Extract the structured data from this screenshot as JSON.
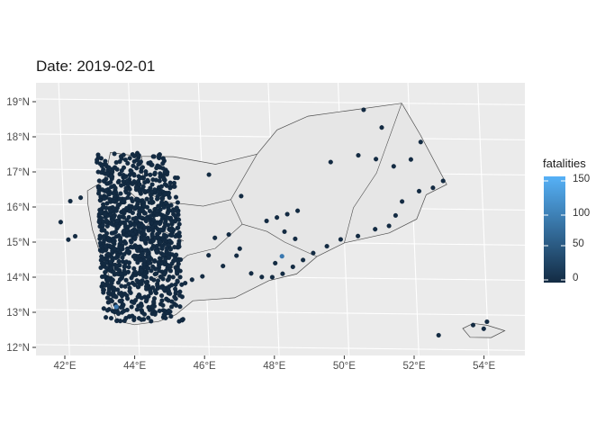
{
  "title": "Date: 2019-02-01",
  "legend": {
    "title": "fatalities",
    "breaks": [
      "150",
      "100",
      "50",
      "0"
    ],
    "color_low": "#132B43",
    "color_high": "#56B1F7"
  },
  "axes": {
    "x_ticks": [
      "42°E",
      "44°E",
      "46°E",
      "48°E",
      "50°E",
      "52°E",
      "54°E"
    ],
    "y_ticks": [
      "19°N",
      "18°N",
      "17°N",
      "16°N",
      "15°N",
      "14°N",
      "13°N",
      "12°N"
    ]
  },
  "colors": {
    "panel": "#ebebeb",
    "grid": "#ffffff",
    "land": "#e6e6e6",
    "border": "#4d4d4d",
    "point": "#132B43"
  },
  "chart_data": {
    "type": "scatter",
    "x_range_lon": [
      41.4,
      55.2
    ],
    "y_range_lat": [
      11.9,
      19.5
    ],
    "x_tick_values": [
      42,
      44,
      46,
      48,
      50,
      52,
      54
    ],
    "y_tick_values": [
      19,
      18,
      17,
      16,
      15,
      14,
      13,
      12
    ],
    "color_scale": "fatalities, continuous 0–150",
    "points": [
      [
        50.7,
        18.8
      ],
      [
        51.2,
        18.3
      ],
      [
        52.3,
        17.9
      ],
      [
        52.0,
        17.4
      ],
      [
        51.0,
        17.4
      ],
      [
        49.7,
        17.3
      ],
      [
        50.5,
        17.5
      ],
      [
        51.5,
        17.2
      ],
      [
        52.9,
        16.8
      ],
      [
        52.6,
        16.6
      ],
      [
        52.2,
        16.5
      ],
      [
        51.7,
        16.2
      ],
      [
        51.5,
        15.8
      ],
      [
        51.3,
        15.5
      ],
      [
        50.9,
        15.4
      ],
      [
        50.4,
        15.2
      ],
      [
        49.9,
        15.1
      ],
      [
        49.5,
        14.9
      ],
      [
        49.1,
        14.7
      ],
      [
        48.8,
        14.5
      ],
      [
        48.5,
        14.3
      ],
      [
        48.2,
        14.1
      ],
      [
        47.9,
        14.0
      ],
      [
        47.6,
        14.0
      ],
      [
        47.3,
        14.1
      ],
      [
        48.7,
        15.9
      ],
      [
        48.4,
        15.8
      ],
      [
        48.1,
        15.7
      ],
      [
        47.8,
        15.6
      ],
      [
        47.1,
        16.3
      ],
      [
        46.2,
        16.9
      ],
      [
        45.3,
        16.8
      ],
      [
        46.7,
        15.2
      ],
      [
        47.0,
        14.8
      ],
      [
        46.3,
        15.1
      ],
      [
        46.1,
        14.6
      ],
      [
        46.5,
        14.3
      ],
      [
        45.9,
        14.0
      ],
      [
        45.6,
        13.9
      ],
      [
        45.4,
        13.8
      ],
      [
        46.9,
        14.6
      ],
      [
        48.3,
        15.3
      ],
      [
        48.6,
        15.1
      ],
      [
        48.0,
        14.4
      ],
      [
        45.2,
        14.2
      ],
      [
        44.9,
        13.3
      ],
      [
        44.8,
        12.8
      ],
      [
        44.5,
        12.9
      ],
      [
        44.2,
        12.9
      ],
      [
        43.9,
        12.8
      ],
      [
        43.5,
        12.7
      ],
      [
        53.9,
        12.6
      ],
      [
        54.0,
        12.8
      ],
      [
        53.6,
        12.7
      ],
      [
        52.6,
        12.4
      ],
      [
        42.2,
        16.1
      ],
      [
        42.5,
        16.2
      ],
      [
        41.9,
        15.5
      ],
      [
        42.3,
        15.1
      ],
      [
        42.1,
        15.0
      ],
      [
        43.2,
        13.9
      ],
      [
        43.3,
        14.2
      ],
      [
        44.2,
        16.6
      ],
      [
        44.9,
        16.8
      ],
      [
        43.8,
        15.3
      ],
      [
        45.0,
        15.0
      ],
      [
        44.7,
        14.5
      ],
      [
        44.5,
        15.5
      ],
      [
        44.3,
        16.0
      ],
      [
        43.6,
        14.8
      ]
    ]
  }
}
